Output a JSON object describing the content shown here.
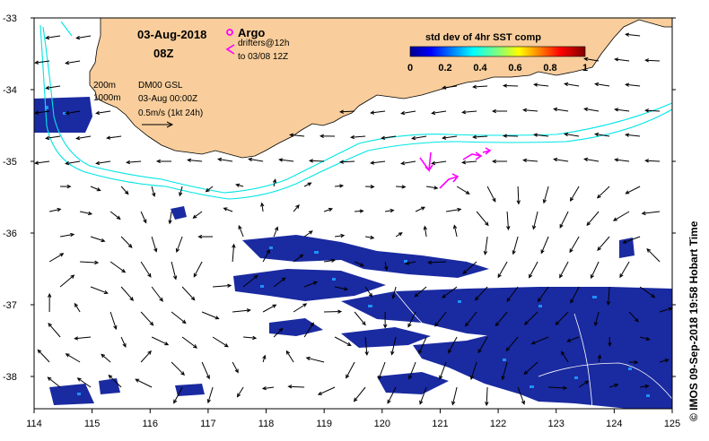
{
  "map": {
    "date_title": "03-Aug-2018",
    "time_title": "08Z",
    "legend": {
      "argo_label": "Argo",
      "drifters_label": "drifters@12h",
      "drifters_sub": "to 03/08 12Z",
      "contour_200": "200m",
      "contour_1000": "1000m",
      "model_label": "DM00 GSL",
      "model_date": "03-Aug 00:00Z",
      "scale_label": "0.5m/s (1kt 24h)"
    },
    "colorbar": {
      "title": "std dev of 4hr SST comp",
      "ticks": [
        "0",
        "0.2",
        "0.4",
        "0.6",
        "0.8",
        "1"
      ],
      "range": [
        0,
        1
      ]
    },
    "x_ticks": [
      "114",
      "115",
      "116",
      "117",
      "118",
      "119",
      "120",
      "121",
      "122",
      "123",
      "124",
      "125"
    ],
    "y_ticks": [
      "-33",
      "-34",
      "-35",
      "-36",
      "-37",
      "-38"
    ],
    "credit": "© IMOS 09-Sep-2018 19:58 Hobart Time",
    "colors": {
      "land": "#f9ce9c",
      "isobath": "#00e5e5",
      "drifter": "#ff00ff",
      "sst_low": "#1a2aa0",
      "sst_mid": "#1e90ff"
    }
  }
}
